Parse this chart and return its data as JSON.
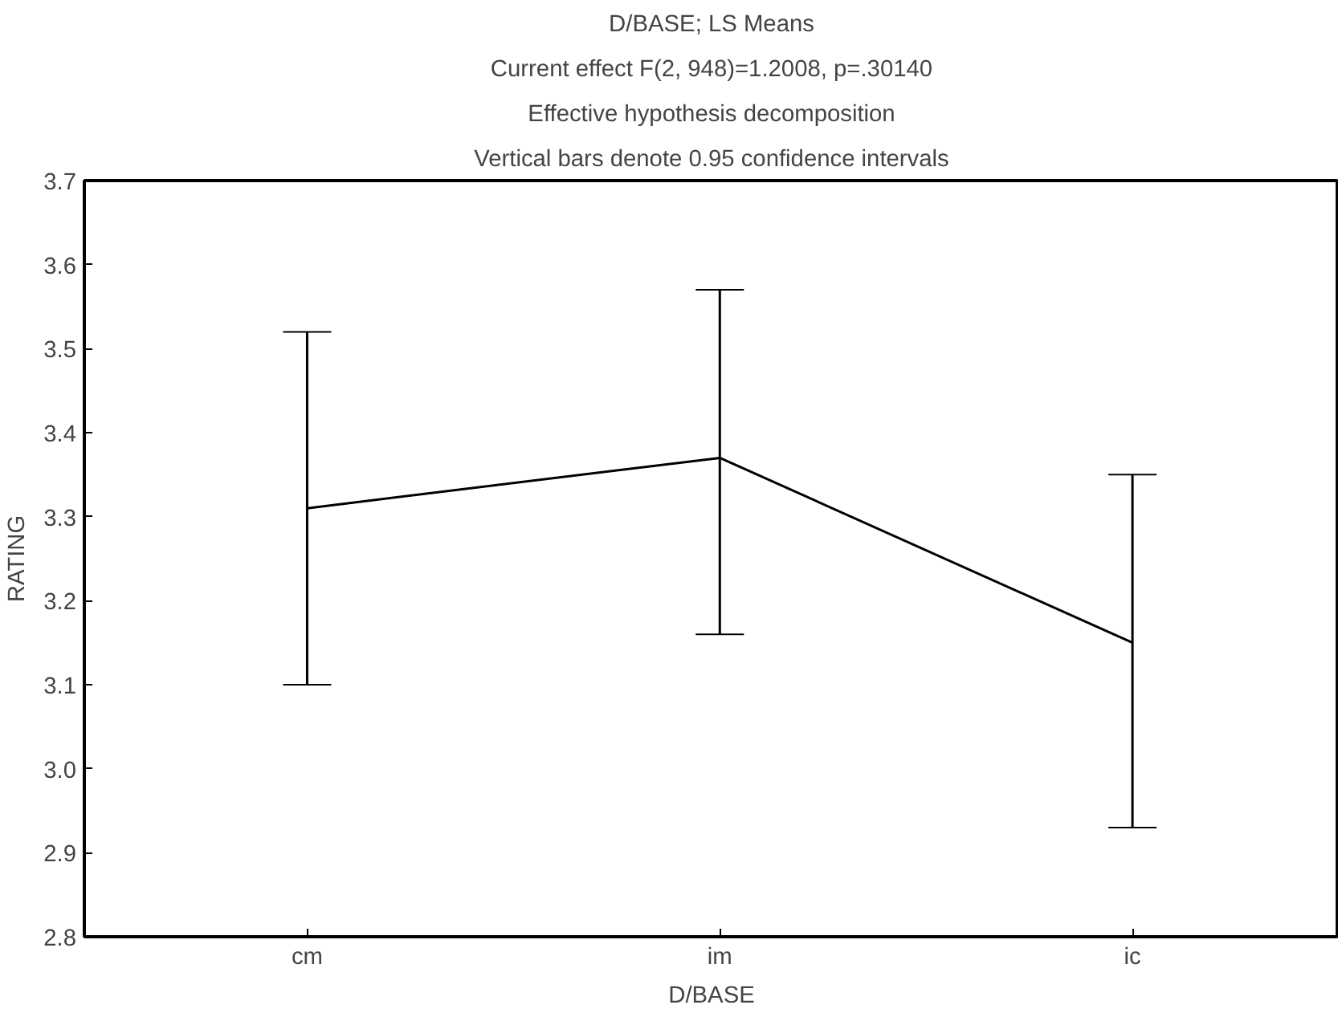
{
  "chart_data": {
    "type": "line",
    "title": "D/BASE; LS Means",
    "subtitle": "Current effect F(2, 948)=1.2008, p=.30140",
    "annotations": [
      "Effective hypothesis decomposition",
      "Vertical bars denote 0.95 confidence intervals"
    ],
    "xlabel": "D/BASE",
    "ylabel": "RATING",
    "categories": [
      "cm",
      "im",
      "ic"
    ],
    "series": [
      {
        "color": "#000000",
        "values": [
          3.31,
          3.37,
          3.15
        ],
        "errors": [
          [
            3.1,
            3.52
          ],
          [
            3.16,
            3.57
          ],
          [
            2.93,
            3.35
          ]
        ]
      }
    ],
    "ylim": [
      2.8,
      3.7
    ],
    "yticks": [
      {
        "value": 2.8,
        "label": "2.8"
      },
      {
        "value": 2.9,
        "label": "2.9"
      },
      {
        "value": 3.0,
        "label": "3.0"
      },
      {
        "value": 3.1,
        "label": "3.1"
      },
      {
        "value": 3.2,
        "label": "3.2"
      },
      {
        "value": 3.3,
        "label": "3.3"
      },
      {
        "value": 3.4,
        "label": "3.4"
      },
      {
        "value": 3.5,
        "label": "3.5"
      },
      {
        "value": 3.6,
        "label": "3.6"
      },
      {
        "value": 3.7,
        "label": "3.7"
      }
    ],
    "grid": false,
    "marker": "none",
    "line_style": "solid"
  }
}
